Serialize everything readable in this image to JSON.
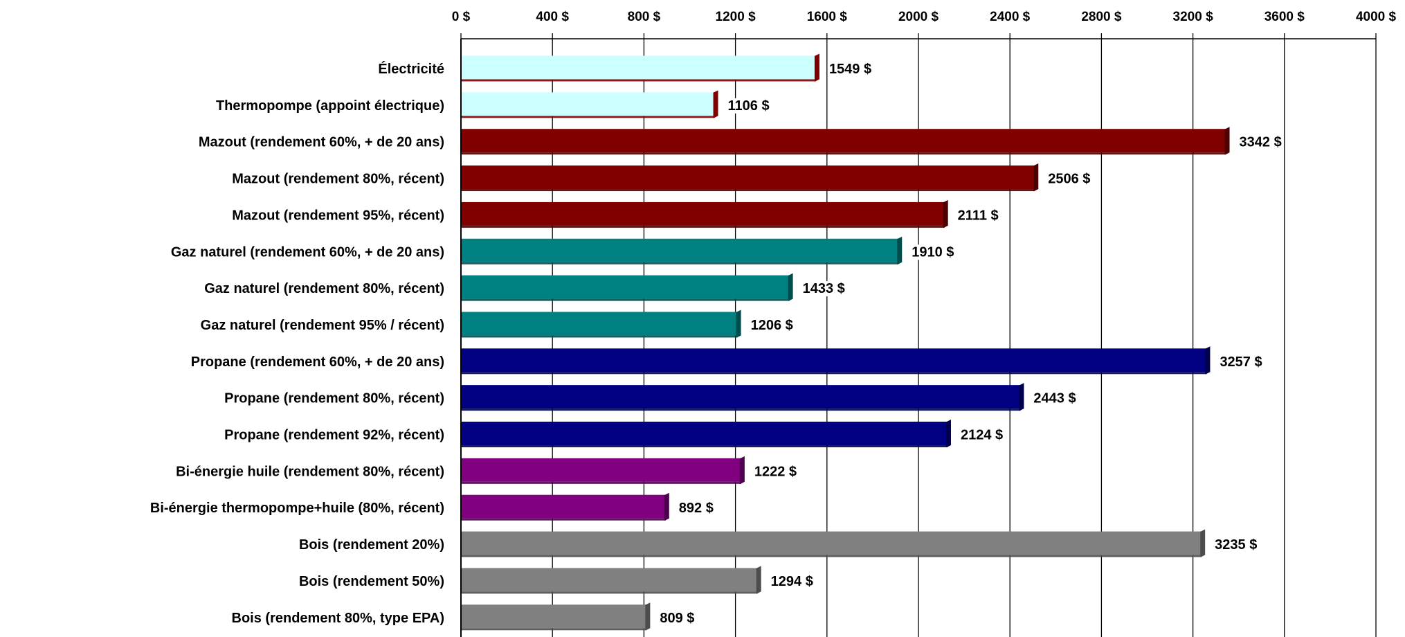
{
  "chart_data": {
    "type": "bar",
    "orientation": "horizontal",
    "title": "",
    "xlabel": "",
    "ylabel": "",
    "xlim": [
      0,
      4000
    ],
    "x_ticks": [
      0,
      400,
      800,
      1200,
      1600,
      2000,
      2400,
      2800,
      3200,
      3600,
      4000
    ],
    "x_tick_labels": [
      "0 $",
      "400 $",
      "800 $",
      "1200 $",
      "1600 $",
      "2000 $",
      "2400 $",
      "2800 $",
      "3200 $",
      "3600 $",
      "4000 $"
    ],
    "x_axis_position": "top",
    "grid": "vertical",
    "legend": "none",
    "categories": [
      "Électricité",
      "Thermopompe (appoint électrique)",
      "Mazout (rendement 60%, + de 20 ans)",
      "Mazout (rendement 80%, récent)",
      "Mazout (rendement 95%, récent)",
      "Gaz naturel (rendement 60%, + de 20 ans)",
      "Gaz naturel (rendement 80%, récent)",
      "Gaz naturel (rendement 95% / récent)",
      "Propane (rendement 60%, + de 20 ans)",
      "Propane (rendement 80%, récent)",
      "Propane (rendement 92%, récent)",
      "Bi-énergie huile (rendement 80%, récent)",
      "Bi-énergie thermopompe+huile (80%, récent)",
      "Bois (rendement 20%)",
      "Bois (rendement 50%)",
      "Bois (rendement 80%, type EPA)"
    ],
    "values": [
      1549,
      1106,
      3342,
      2506,
      2111,
      1910,
      1433,
      1206,
      3257,
      2443,
      2124,
      1222,
      892,
      3235,
      1294,
      809
    ],
    "value_labels": [
      "1549 $",
      "1106 $",
      "3342 $",
      "2506 $",
      "2111 $",
      "1910 $",
      "1433 $",
      "1206 $",
      "3257 $",
      "2443 $",
      "2124 $",
      "1222 $",
      "892 $",
      "3235 $",
      "1294 $",
      "809 $"
    ],
    "bar_colors": [
      "#ccffff",
      "#ccffff",
      "#800000",
      "#800000",
      "#800000",
      "#008080",
      "#008080",
      "#008080",
      "#000080",
      "#000080",
      "#000080",
      "#800080",
      "#800080",
      "#808080",
      "#808080",
      "#808080"
    ],
    "bar_shadow_colors": [
      "#800000",
      "#800000",
      "#4d0000",
      "#4d0000",
      "#4d0000",
      "#004d4d",
      "#004d4d",
      "#004d4d",
      "#00004d",
      "#00004d",
      "#00004d",
      "#4d004d",
      "#4d004d",
      "#4d4d4d",
      "#4d4d4d",
      "#4d4d4d"
    ]
  }
}
